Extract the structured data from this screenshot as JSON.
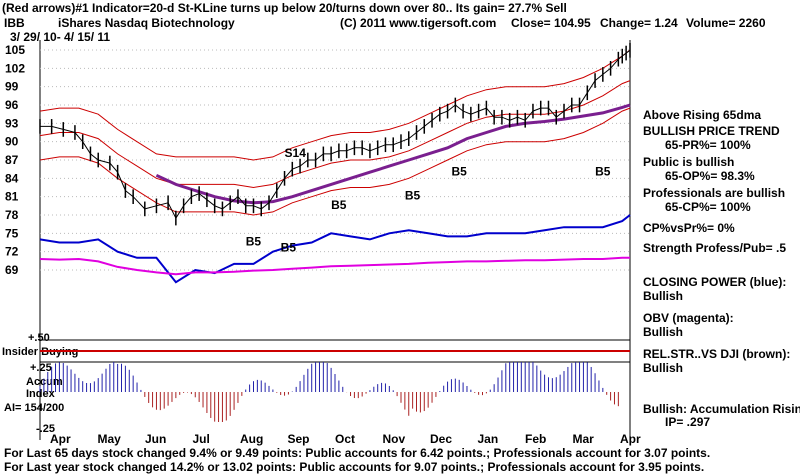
{
  "header": {
    "line1": "(Red arrows)#1 Indicator=20-d St-KLine turns up below 20/turns down over 80.. Its gain= 27.7% Sell",
    "ticker": "IBB",
    "name": "iShares Nasdaq Biotechnology",
    "copyright": "(C) 2011 www.tigersoft.com",
    "close": "Close= 104.95",
    "change": "Change= 1.24",
    "volume": "Volume= 2260",
    "daterange": "3/ 29/ 10- 4/ 15/ 11"
  },
  "chart_data": {
    "type": "line",
    "price_axis": {
      "ticks": [
        "105",
        "102",
        "99",
        "96",
        "93",
        "90",
        "87",
        "84",
        "81",
        "78",
        "75",
        "72",
        "69"
      ],
      "ylim": [
        69,
        105
      ]
    },
    "months": [
      "Apr",
      "May",
      "Jun",
      "Jul",
      "Aug",
      "Sep",
      "Oct",
      "Nov",
      "Dec",
      "Jan",
      "Feb",
      "Mar",
      "Apr"
    ],
    "price": {
      "x": [
        0,
        3,
        6,
        9,
        11,
        13,
        15,
        18,
        20,
        22,
        24,
        27,
        30,
        33,
        35,
        37,
        39,
        41,
        43,
        45,
        47,
        49,
        51,
        53,
        55,
        57,
        59,
        61,
        63,
        65,
        67,
        69,
        71,
        73,
        75,
        77,
        79,
        81,
        83,
        85,
        87,
        89,
        91,
        93,
        95,
        97,
        99,
        101,
        103,
        105,
        107,
        109,
        111,
        113,
        115,
        117,
        119,
        121,
        123,
        125,
        127,
        129,
        131,
        133,
        135,
        137,
        139,
        141,
        143,
        145,
        147,
        149,
        150,
        151,
        152
      ],
      "y": [
        92.5,
        92.5,
        92,
        91.5,
        90,
        88,
        87,
        86.5,
        85,
        82,
        81,
        79,
        79.5,
        80,
        77.5,
        79.5,
        81,
        81.5,
        80.5,
        79.5,
        79,
        80,
        81,
        79.5,
        79.5,
        79,
        80,
        82,
        84,
        85.5,
        86,
        87,
        87,
        88,
        88,
        88.5,
        88.5,
        89,
        89,
        88.5,
        89,
        89.5,
        89.5,
        90,
        90.5,
        91.5,
        92.5,
        93.5,
        94.5,
        95,
        96,
        95,
        94.5,
        95,
        95.5,
        94,
        94,
        93.5,
        94,
        93.5,
        95,
        95.5,
        95.5,
        94,
        95,
        96,
        96,
        98,
        100,
        101,
        102,
        103.5,
        104,
        104.5,
        104.95
      ]
    },
    "ma65": {
      "x": [
        30,
        35,
        40,
        45,
        50,
        55,
        60,
        65,
        70,
        75,
        80,
        85,
        90,
        95,
        100,
        105,
        110,
        115,
        120,
        125,
        130,
        135,
        140,
        145,
        150,
        152
      ],
      "y": [
        84.5,
        83,
        82,
        81,
        80.3,
        80,
        80.2,
        81,
        82,
        83,
        84,
        85,
        86,
        87,
        88,
        89,
        90.5,
        91.5,
        92.5,
        93,
        93.3,
        93.7,
        94.2,
        94.7,
        95.6,
        96
      ]
    },
    "upper_band": {
      "x": [
        0,
        5,
        10,
        15,
        20,
        25,
        30,
        35,
        40,
        45,
        50,
        55,
        60,
        65,
        70,
        75,
        80,
        85,
        90,
        95,
        100,
        105,
        110,
        115,
        120,
        125,
        130,
        135,
        140,
        145,
        150,
        152
      ],
      "y": [
        95,
        95.5,
        95.5,
        94.5,
        92,
        90,
        88,
        87.5,
        87.5,
        87.5,
        87.5,
        87,
        87.5,
        89,
        90,
        91,
        91.5,
        91.5,
        92,
        93,
        94.5,
        96,
        97.5,
        98.5,
        99,
        99,
        99,
        99.5,
        100.5,
        102,
        104,
        105
      ]
    },
    "middle_band": {
      "x": [
        0,
        5,
        10,
        15,
        20,
        25,
        30,
        35,
        40,
        45,
        50,
        55,
        60,
        65,
        70,
        75,
        80,
        85,
        90,
        95,
        100,
        105,
        110,
        115,
        120,
        125,
        130,
        135,
        140,
        145,
        150,
        152
      ],
      "y": [
        91,
        91.5,
        91.5,
        90.5,
        88,
        86,
        84,
        83,
        83,
        83,
        83,
        82.5,
        83,
        84.5,
        85.5,
        86.5,
        87,
        87,
        87.5,
        88.5,
        90,
        91.5,
        93,
        94,
        94.5,
        94.5,
        94.5,
        95,
        96,
        97.5,
        99.5,
        100
      ]
    },
    "lower_band": {
      "x": [
        0,
        5,
        10,
        15,
        20,
        25,
        30,
        35,
        40,
        45,
        50,
        55,
        60,
        65,
        70,
        75,
        80,
        85,
        90,
        95,
        100,
        105,
        110,
        115,
        120,
        125,
        130,
        135,
        140,
        145,
        150,
        152
      ],
      "y": [
        87,
        87.5,
        87.5,
        86.5,
        84,
        82,
        80,
        78.5,
        78.5,
        78.5,
        78.5,
        78,
        78.5,
        80,
        81,
        82,
        82.5,
        82.5,
        83,
        84,
        85.5,
        87,
        88.5,
        89.5,
        90,
        90,
        90,
        90.5,
        91.5,
        93,
        95,
        95.5
      ]
    },
    "closing_power_blue": {
      "x": [
        0,
        5,
        10,
        15,
        20,
        25,
        30,
        35,
        40,
        45,
        50,
        55,
        60,
        65,
        70,
        75,
        80,
        85,
        90,
        95,
        100,
        105,
        110,
        115,
        120,
        125,
        130,
        135,
        140,
        145,
        150,
        152
      ],
      "y": [
        74,
        73.5,
        73.5,
        74,
        72,
        71,
        71,
        67,
        69,
        68.5,
        70,
        70,
        72,
        73,
        73.5,
        75,
        74.5,
        74,
        75,
        75.5,
        75,
        74.5,
        74.5,
        75,
        75,
        75,
        75.5,
        76,
        76,
        76,
        77,
        78
      ]
    },
    "obv_magenta": {
      "x": [
        0,
        5,
        10,
        15,
        20,
        25,
        30,
        35,
        40,
        45,
        50,
        55,
        60,
        65,
        70,
        75,
        80,
        85,
        90,
        95,
        100,
        105,
        110,
        115,
        120,
        125,
        130,
        135,
        140,
        145,
        150,
        152
      ],
      "y": [
        70.8,
        70.7,
        70.8,
        70.4,
        69.5,
        69,
        68.6,
        68.3,
        68.6,
        68.6,
        68.7,
        68.9,
        69,
        69.2,
        69.4,
        69.6,
        69.7,
        69.8,
        69.9,
        70,
        70.2,
        70.3,
        70.4,
        70.4,
        70.5,
        70.6,
        70.6,
        70.7,
        70.8,
        70.8,
        71,
        71
      ]
    },
    "markers": [
      {
        "label": "S14",
        "x": 63,
        "y": 87.5
      },
      {
        "label": "B5",
        "x": 106,
        "y": 84.5
      },
      {
        "label": "B5",
        "x": 94,
        "y": 80.5
      },
      {
        "label": "B5",
        "x": 75,
        "y": 79
      },
      {
        "label": "B5",
        "x": 53,
        "y": 73
      },
      {
        "label": "B5",
        "x": 62,
        "y": 72
      },
      {
        "label": "B5",
        "x": 143,
        "y": 84.5
      }
    ],
    "accum_axis": {
      "ticks": [
        "+.50",
        "+.25",
        "-.25"
      ]
    },
    "accum_label": "Accum Index",
    "insider_label": "Insider Buying",
    "ai_text": "AI= 154/200",
    "right_labels": [
      {
        "text": "Above Rising 65dma",
        "bold": true
      },
      {
        "text": "BULLISH PRICE TREND",
        "bold": true
      },
      {
        "text": "65-PR%= 100%",
        "bold": true,
        "indent": true
      },
      {
        "text": "Public is bullish",
        "bold": true
      },
      {
        "text": "65-OP%= 98.3%",
        "bold": true,
        "indent": true
      },
      {
        "text": "Professionals are bullish",
        "bold": true
      },
      {
        "text": "65-CP%= 100%",
        "bold": true,
        "indent": true
      },
      {
        "text": "CP%vsPr%= 0%",
        "bold": true
      },
      {
        "text": "Strength Profess/Pub= .5",
        "bold": true
      },
      {
        "text": "CLOSING POWER (blue):",
        "bold": true
      },
      {
        "text": "Bullish",
        "bold": true
      },
      {
        "text": "OBV (magenta):",
        "bold": true
      },
      {
        "text": "Bullish",
        "bold": true
      },
      {
        "text": "REL.STR..VS DJI (brown):",
        "bold": true
      },
      {
        "text": "Bullish",
        "bold": true
      },
      {
        "text": "Bullish: Accumulation Rising",
        "bold": true
      },
      {
        "text": "IP= .297",
        "bold": true,
        "indent": true
      }
    ]
  },
  "footer": {
    "line1": "For Last 65 days stock changed  9.4% or  9.49 points:  Public accounts for  6.42 points.;  Professionals account for  3.07 points.",
    "line2": "For Last year stock changed  14.2% or  13.02 points:  Public accounts for  9.07 points.;  Professionals account for  3.95 points."
  },
  "colors": {
    "price": "#000000",
    "band": "#cc0000",
    "ma": "#7a1f8f",
    "blue": "#0000cc",
    "magenta": "#e000e0",
    "accum_bar": "#2222aa",
    "accum_neg": "#aa2222"
  }
}
